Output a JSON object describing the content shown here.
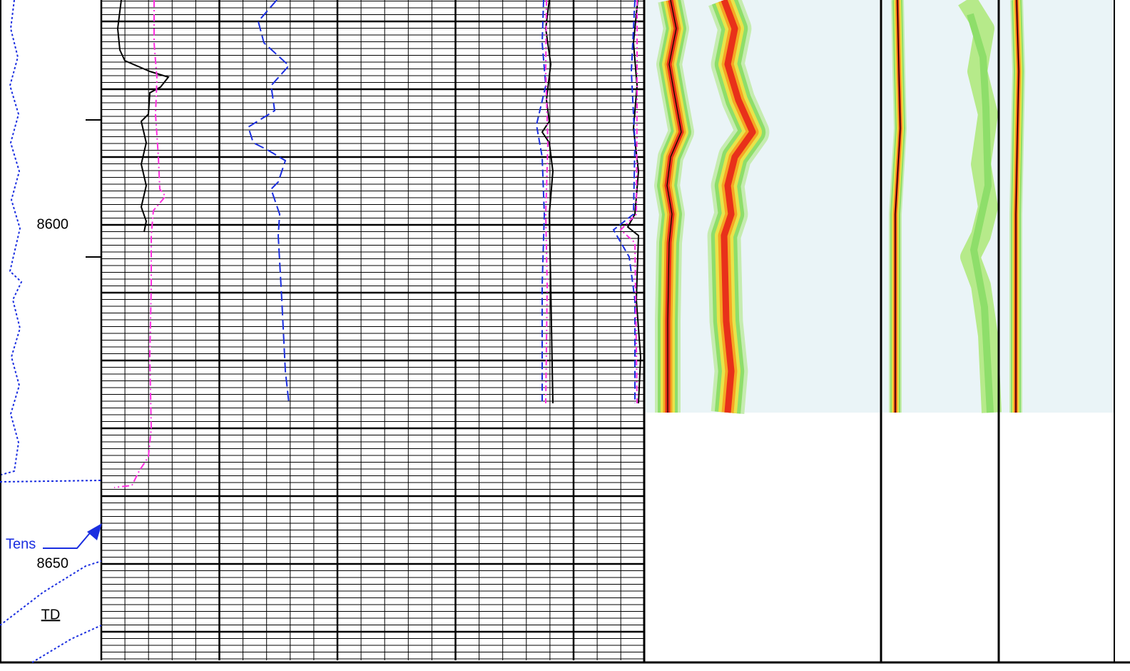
{
  "depth_labels": [
    8600,
    8650
  ],
  "annotations": {
    "tension": "Tens",
    "total_depth": "TD"
  }
}
